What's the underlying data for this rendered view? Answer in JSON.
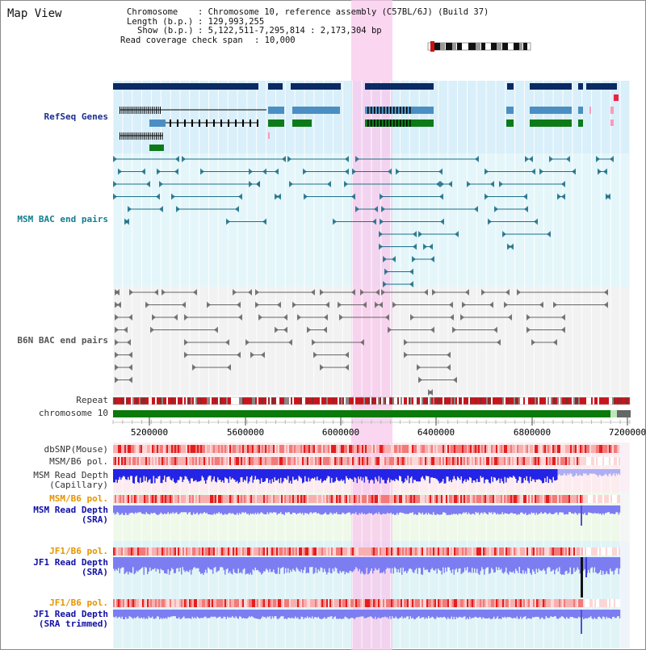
{
  "window": {
    "title": "Map View"
  },
  "info": {
    "chromosome_label": "Chromosome",
    "chromosome_value": "Chromosome 10, reference assembly (C57BL/6J) (Build 37)",
    "length_label": "Length (b.p.)",
    "length_value": "129,993,255",
    "show_label": "Show (b.p.)",
    "show_value": "5,122,511-7,295,814 : 2,173,304 bp",
    "coverage_label": "Read coverage check span",
    "coverage_value": "10,000"
  },
  "tracks": {
    "refseq": "RefSeq Genes",
    "msm_bac": "MSM BAC end pairs",
    "b6n_bac": "B6N BAC end pairs",
    "repeat": "Repeat",
    "chromosome": "chromosome 10",
    "dbsnp": "dbSNP(Mouse)",
    "msm_pol_1": "MSM/B6 pol.",
    "msm_depth_cap_1": "MSM Read Depth",
    "msm_depth_cap_2": "(Capillary)",
    "msm_pol_2": "MSM/B6 pol.",
    "msm_depth_sra_1": "MSM Read Depth",
    "msm_depth_sra_2": "(SRA)",
    "jf1_pol_1": "JF1/B6 pol.",
    "jf1_depth_sra_1": "JF1 Read Depth",
    "jf1_depth_sra_2": "(SRA)",
    "jf1_pol_2": "JF1/B6 pol.",
    "jf1_depth_trim_1": "JF1 Read Depth",
    "jf1_depth_trim_2": "(SRA trimmed)"
  },
  "axis": {
    "ticks": [
      "5200000",
      "5600000",
      "6000000",
      "6400000",
      "6800000",
      "7200000"
    ],
    "range": [
      5122511,
      7295814
    ]
  },
  "highlight": {
    "start": 6100000,
    "end": 6270000
  },
  "colors": {
    "gene_dark": "#0b2a63",
    "gene_blue": "#4b8fc2",
    "gene_green": "#0d7a1a",
    "bac_teal": "#1d6f86",
    "bac_gray": "#666666",
    "chromosome": "#0a7a0a",
    "highlight": "#f8c8ec",
    "depth_blue": "#2424e6",
    "depth_light": "#7d7df2"
  }
}
